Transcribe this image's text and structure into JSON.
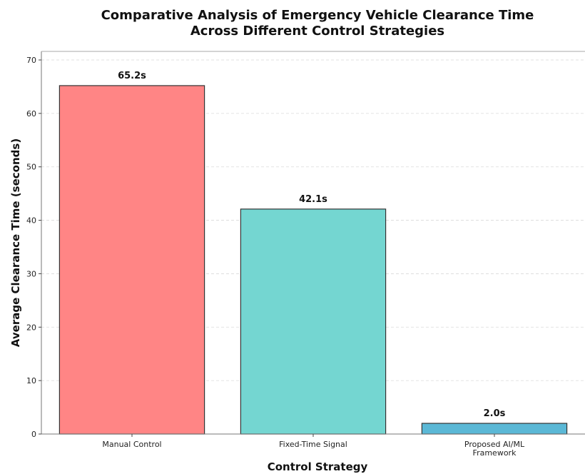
{
  "chart_data": {
    "type": "bar",
    "title_lines": [
      "Comparative Analysis of Emergency Vehicle Clearance Time",
      "Across Different Control Strategies"
    ],
    "xlabel": "Control Strategy",
    "ylabel": "Average Clearance Time (seconds)",
    "categories": [
      [
        "Manual Control"
      ],
      [
        "Fixed-Time Signal"
      ],
      [
        "Proposed AI/ML",
        "Framework"
      ]
    ],
    "values": [
      65.2,
      42.1,
      2.0
    ],
    "data_labels": [
      "65.2s",
      "42.1s",
      "2.0s"
    ],
    "colors": [
      "#ff8585",
      "#74d6d1",
      "#5bb8d6"
    ],
    "ylim": [
      0,
      70
    ],
    "yticks": [
      0,
      10,
      20,
      30,
      40,
      50,
      60,
      70
    ],
    "grid": "horizontal dashed",
    "legend": "none"
  }
}
